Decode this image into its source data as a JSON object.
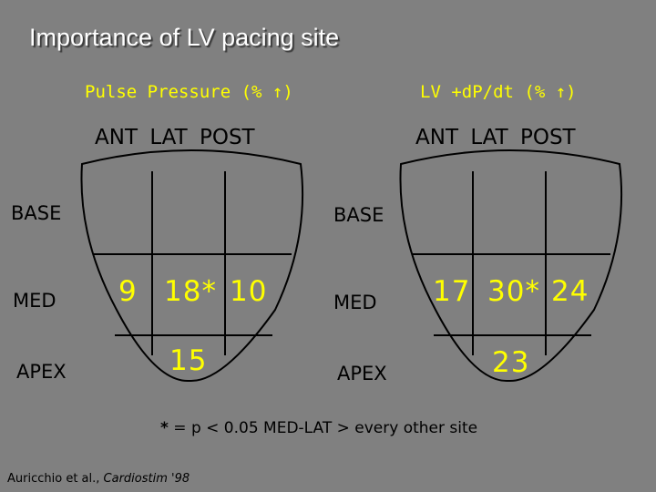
{
  "title": "Importance of LV pacing site",
  "arrow_glyph": "↑",
  "panels": [
    {
      "heading_text": "Pulse Pressure (% ",
      "heading_close": ")",
      "columns": [
        "ANT",
        "LAT",
        "POST"
      ],
      "rows": [
        "BASE",
        "MED",
        "APEX"
      ],
      "med_values": [
        "9",
        "18*",
        "10"
      ],
      "apex_value": "15"
    },
    {
      "heading_text": "LV +dP/dt (% ",
      "heading_close": ")",
      "columns": [
        "ANT",
        "LAT",
        "POST"
      ],
      "rows": [
        "BASE",
        "MED",
        "APEX"
      ],
      "med_values": [
        "17",
        "30*",
        "24"
      ],
      "apex_value": "23"
    }
  ],
  "footnote": {
    "star": "*",
    "text": " = p < 0.05 MED-LAT > every other site"
  },
  "citation": {
    "authors": "Auricchio et al., ",
    "journal": "Cardiostim '98"
  },
  "colors": {
    "background": "#808080",
    "title": "#ffffff",
    "accent": "#ffff00",
    "ink": "#000000"
  }
}
